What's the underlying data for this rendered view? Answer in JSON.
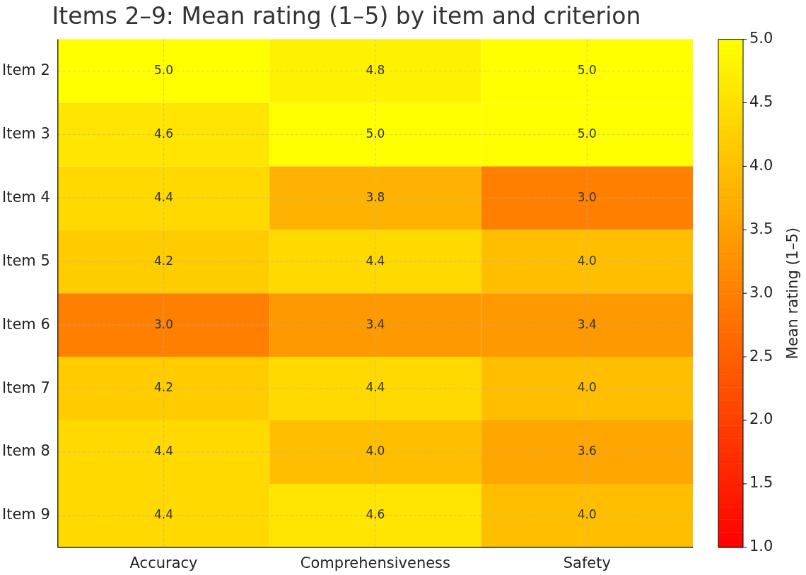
{
  "chart_data": {
    "type": "heatmap",
    "title": "Items 2–9: Mean rating (1–5) by item and criterion",
    "categories": [
      "Accuracy",
      "Comprehensiveness",
      "Safety"
    ],
    "y_categories": [
      "Item 2",
      "Item 3",
      "Item 4",
      "Item 5",
      "Item 6",
      "Item 7",
      "Item 8",
      "Item 9"
    ],
    "cells": [
      [
        5.0,
        4.8,
        5.0
      ],
      [
        4.6,
        5.0,
        5.0
      ],
      [
        4.4,
        3.8,
        3.0
      ],
      [
        4.2,
        4.4,
        4.0
      ],
      [
        3.0,
        3.4,
        3.4
      ],
      [
        4.2,
        4.4,
        4.0
      ],
      [
        4.4,
        4.0,
        3.6
      ],
      [
        4.4,
        4.6,
        4.0
      ]
    ],
    "cell_labels": [
      [
        "5.0",
        "4.8",
        "5.0"
      ],
      [
        "4.6",
        "5.0",
        "5.0"
      ],
      [
        "4.4",
        "3.8",
        "3.0"
      ],
      [
        "4.2",
        "4.4",
        "4.0"
      ],
      [
        "3.0",
        "3.4",
        "3.4"
      ],
      [
        "4.2",
        "4.4",
        "4.0"
      ],
      [
        "4.4",
        "4.0",
        "3.6"
      ],
      [
        "4.4",
        "4.6",
        "4.0"
      ]
    ],
    "clabel": "Mean rating (1–5)",
    "clim": [
      1.0,
      5.0
    ],
    "cticks": [
      {
        "value": 1,
        "label": "1.0"
      },
      {
        "value": 1.5,
        "label": "1.5"
      },
      {
        "value": 2,
        "label": "2.0"
      },
      {
        "value": 2.5,
        "label": "2.5"
      },
      {
        "value": 3,
        "label": "3.0"
      },
      {
        "value": 3.5,
        "label": "3.5"
      },
      {
        "value": 4,
        "label": "4.0"
      },
      {
        "value": 4.5,
        "label": "4.5"
      },
      {
        "value": 5,
        "label": "5.0"
      }
    ],
    "data_labels": true,
    "grid": true
  }
}
